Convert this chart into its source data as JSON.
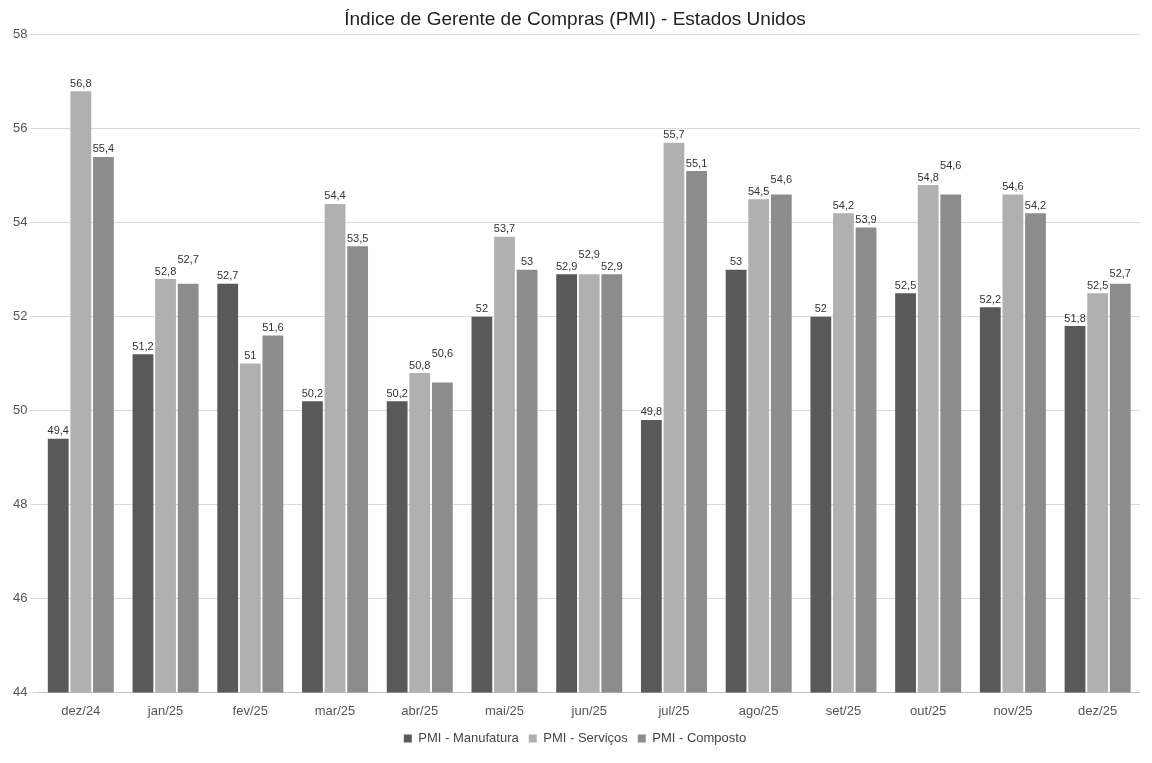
{
  "chart_data": {
    "type": "bar",
    "title": "Índice de Gerente de Compras (PMI) - Estados Unidos",
    "categories": [
      "dez/24",
      "jan/25",
      "fev/25",
      "mar/25",
      "abr/25",
      "mai/25",
      "jun/25",
      "jul/25",
      "ago/25",
      "set/25",
      "out/25",
      "nov/25",
      "dez/25"
    ],
    "series": [
      {
        "name": "PMI - Manufatura",
        "color": "#595959",
        "values": [
          49.4,
          51.2,
          52.7,
          50.2,
          50.2,
          52,
          52.9,
          49.8,
          53,
          52,
          52.5,
          52.2,
          51.8
        ],
        "value_labels": [
          "49,4",
          "51,2",
          "52,7",
          "50,2",
          "50,2",
          "52",
          "52,9",
          "49,8",
          "53",
          "52",
          "52,5",
          "52,2",
          "51,8"
        ]
      },
      {
        "name": "PMI - Serviços",
        "color": "#b0b0b0",
        "values": [
          56.8,
          52.8,
          51,
          54.4,
          50.8,
          53.7,
          52.9,
          55.7,
          54.5,
          54.2,
          54.8,
          54.6,
          52.5
        ],
        "value_labels": [
          "56,8",
          "52,8",
          "51",
          "54,4",
          "50,8",
          "53,7",
          "52,9",
          "55,7",
          "54,5",
          "54,2",
          "54,8",
          "54,6",
          "52,5"
        ]
      },
      {
        "name": "PMI - Composto",
        "color": "#8c8c8c",
        "values": [
          55.4,
          52.7,
          51.6,
          53.5,
          50.6,
          53,
          52.9,
          55.1,
          54.6,
          53.9,
          54.6,
          54.2,
          52.7
        ],
        "value_labels": [
          "55,4",
          "52,7",
          "51,6",
          "53,5",
          "50,6",
          "53",
          "52,9",
          "55,1",
          "54,6",
          "53,9",
          "54,6",
          "54,2",
          "52,7"
        ]
      }
    ],
    "ylim": [
      44,
      58
    ],
    "yticks": [
      44,
      46,
      48,
      50,
      52,
      54,
      56,
      58
    ],
    "grid": "y",
    "legend": "bottom"
  }
}
